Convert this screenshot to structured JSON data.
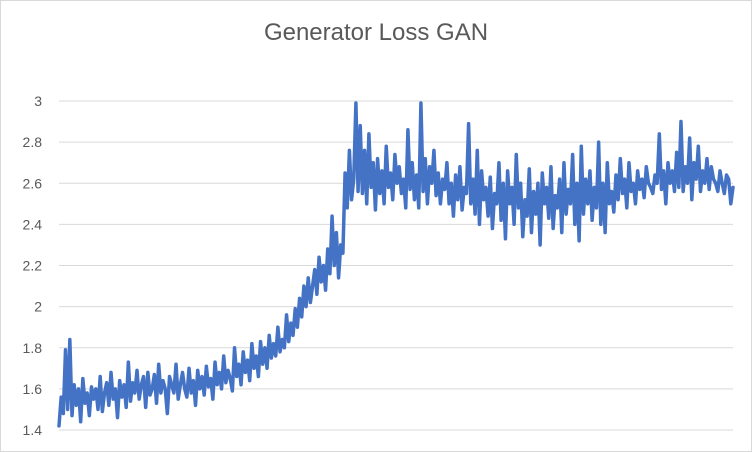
{
  "chart_data": {
    "type": "line",
    "title": "Generator Loss GAN",
    "xlabel": "",
    "ylabel": "",
    "ylim": [
      1.4,
      3.0
    ],
    "y_ticks": [
      "1.4",
      "1.6",
      "1.8",
      "2",
      "2.2",
      "2.4",
      "2.6",
      "2.8",
      "3"
    ],
    "grid": "horizontal",
    "legend": "none",
    "series": [
      {
        "color": "#4472c4",
        "values": [
          1.42,
          1.56,
          1.48,
          1.79,
          1.5,
          1.84,
          1.47,
          1.62,
          1.52,
          1.6,
          1.44,
          1.65,
          1.53,
          1.58,
          1.47,
          1.61,
          1.55,
          1.6,
          1.5,
          1.66,
          1.49,
          1.58,
          1.63,
          1.52,
          1.68,
          1.55,
          1.6,
          1.46,
          1.64,
          1.56,
          1.62,
          1.51,
          1.73,
          1.54,
          1.63,
          1.58,
          1.69,
          1.55,
          1.62,
          1.66,
          1.51,
          1.68,
          1.57,
          1.6,
          1.67,
          1.53,
          1.72,
          1.58,
          1.64,
          1.6,
          1.48,
          1.66,
          1.62,
          1.58,
          1.72,
          1.55,
          1.62,
          1.68,
          1.6,
          1.56,
          1.7,
          1.58,
          1.64,
          1.52,
          1.69,
          1.6,
          1.66,
          1.57,
          1.71,
          1.61,
          1.65,
          1.55,
          1.73,
          1.62,
          1.68,
          1.6,
          1.76,
          1.63,
          1.69,
          1.65,
          1.59,
          1.8,
          1.66,
          1.72,
          1.62,
          1.78,
          1.68,
          1.74,
          1.64,
          1.82,
          1.7,
          1.76,
          1.66,
          1.83,
          1.72,
          1.8,
          1.7,
          1.86,
          1.75,
          1.82,
          1.76,
          1.9,
          1.78,
          1.84,
          1.8,
          1.96,
          1.83,
          1.92,
          1.86,
          1.99,
          1.9,
          2.04,
          1.95,
          2.1,
          2.0,
          2.14,
          2.02,
          2.1,
          2.18,
          2.06,
          2.24,
          2.12,
          2.2,
          2.08,
          2.28,
          2.16,
          2.44,
          2.2,
          2.36,
          2.14,
          2.3,
          2.26,
          2.65,
          2.48,
          2.76,
          2.52,
          2.62,
          2.99,
          2.56,
          2.88,
          2.55,
          2.76,
          2.5,
          2.84,
          2.58,
          2.7,
          2.47,
          2.72,
          2.55,
          2.66,
          2.5,
          2.78,
          2.58,
          2.65,
          2.52,
          2.74,
          2.6,
          2.68,
          2.55,
          2.62,
          2.48,
          2.86,
          2.57,
          2.7,
          2.52,
          2.64,
          2.48,
          2.99,
          2.56,
          2.72,
          2.5,
          2.68,
          2.6,
          2.76,
          2.54,
          2.65,
          2.5,
          2.62,
          2.57,
          2.7,
          2.5,
          2.6,
          2.44,
          2.64,
          2.52,
          2.68,
          2.47,
          2.58,
          2.55,
          2.89,
          2.5,
          2.62,
          2.45,
          2.76,
          2.4,
          2.66,
          2.52,
          2.58,
          2.44,
          2.63,
          2.38,
          2.55,
          2.5,
          2.7,
          2.42,
          2.6,
          2.33,
          2.66,
          2.5,
          2.58,
          2.4,
          2.74,
          2.48,
          2.6,
          2.34,
          2.52,
          2.44,
          2.67,
          2.36,
          2.56,
          2.45,
          2.6,
          2.3,
          2.65,
          2.5,
          2.58,
          2.43,
          2.68,
          2.38,
          2.54,
          2.48,
          2.62,
          2.36,
          2.7,
          2.45,
          2.57,
          2.5,
          2.74,
          2.4,
          2.6,
          2.32,
          2.78,
          2.45,
          2.62,
          2.5,
          2.66,
          2.42,
          2.58,
          2.48,
          2.8,
          2.4,
          2.6,
          2.36,
          2.7,
          2.5,
          2.56,
          2.46,
          2.64,
          2.52,
          2.72,
          2.55,
          2.62,
          2.48,
          2.7,
          2.56,
          2.6,
          2.5,
          2.66,
          2.57,
          2.62,
          2.53,
          2.68,
          2.6,
          2.58,
          2.55,
          2.64,
          2.6,
          2.84,
          2.57,
          2.66,
          2.5,
          2.7,
          2.6,
          2.66,
          2.56,
          2.75,
          2.58,
          2.9,
          2.56,
          2.68,
          2.6,
          2.82,
          2.52,
          2.7,
          2.62,
          2.78,
          2.56,
          2.66,
          2.6,
          2.72,
          2.57,
          2.68,
          2.62,
          2.6,
          2.56,
          2.66,
          2.6,
          2.55,
          2.64,
          2.62,
          2.5,
          2.58
        ]
      }
    ]
  }
}
